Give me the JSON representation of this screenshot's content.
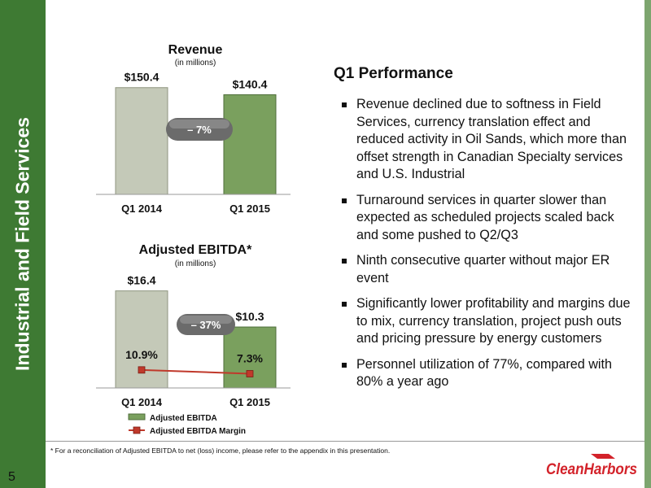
{
  "sidebar": {
    "title": "Industrial and Field Services",
    "color": "#3e7a33"
  },
  "page_number": "5",
  "revenue_chart": {
    "title": "Revenue",
    "subtitle": "(in millions)",
    "change_badge": "– 7%"
  },
  "ebitda_chart": {
    "title": "Adjusted EBITDA*",
    "subtitle": "(in millions)",
    "change_badge": "– 37%",
    "legend": [
      "Adjusted EBITDA",
      "Adjusted EBITDA Margin"
    ]
  },
  "chart_data": [
    {
      "type": "bar",
      "title": "Revenue",
      "subtitle": "(in millions)",
      "categories": [
        "Q1 2014",
        "Q1 2015"
      ],
      "values": [
        150.4,
        140.4
      ],
      "data_labels": [
        "$150.4",
        "$140.4"
      ],
      "ylim": [
        0,
        165
      ],
      "grid": false,
      "colors": [
        "#c4c9b8",
        "#7aa05e"
      ]
    },
    {
      "type": "bar",
      "title": "Adjusted EBITDA*",
      "subtitle": "(in millions)",
      "categories": [
        "Q1 2014",
        "Q1 2015"
      ],
      "series": [
        {
          "name": "Adjusted EBITDA",
          "type": "bar",
          "values": [
            16.4,
            10.3
          ],
          "data_labels": [
            "$16.4",
            "$10.3"
          ]
        },
        {
          "name": "Adjusted EBITDA Margin",
          "type": "line",
          "values": [
            10.9,
            7.3
          ],
          "data_labels": [
            "10.9%",
            "7.3%"
          ]
        }
      ],
      "ylim": [
        0,
        18
      ],
      "legend_position": "bottom-left",
      "grid": false,
      "colors": [
        "#c4c9b8",
        "#7aa05e",
        "#c0392b"
      ]
    }
  ],
  "performance": {
    "heading": "Q1 Performance",
    "bullets": [
      "Revenue declined due to softness in Field Services, currency translation effect and reduced activity in Oil Sands, which more than offset strength in Canadian Specialty services and U.S. Industrial",
      "Turnaround services in quarter slower than expected as scheduled projects scaled back and some pushed to Q2/Q3",
      "Ninth consecutive quarter without major ER event",
      "Significantly lower profitability and margins due to mix, currency translation, project push outs and pricing pressure by energy customers",
      "Personnel utilization of 77%, compared with 80% a year ago"
    ]
  },
  "footnote": "* For a reconciliation of Adjusted EBITDA to net (loss) income, please refer to the appendix in this presentation.",
  "logo": {
    "text": "CleanHarbors",
    "color": "#d3222a"
  }
}
